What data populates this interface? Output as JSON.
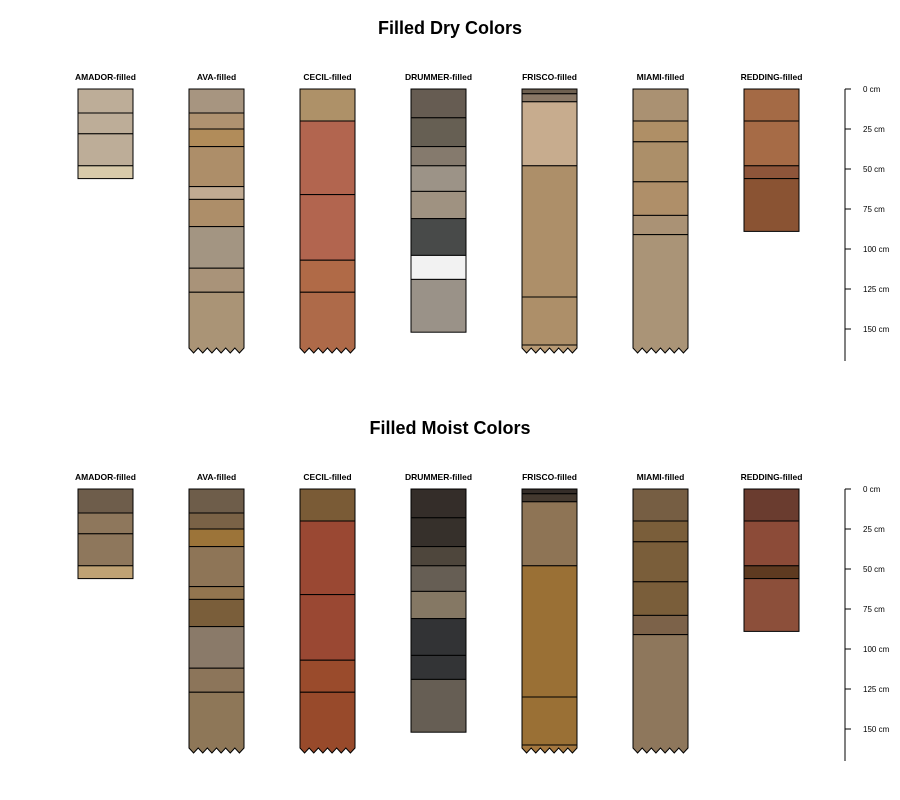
{
  "panels": [
    {
      "title": "Filled Dry Colors",
      "profiles": [
        {
          "label": "AMADOR-filled",
          "truncated": false,
          "horizons": [
            {
              "top": 0,
              "bottom": 15,
              "color": "#BDAD98"
            },
            {
              "top": 15,
              "bottom": 28,
              "color": "#BDAD98"
            },
            {
              "top": 28,
              "bottom": 48,
              "color": "#BDAD98"
            },
            {
              "top": 48,
              "bottom": 56,
              "color": "#D8CAAA"
            }
          ]
        },
        {
          "label": "AVA-filled",
          "truncated": true,
          "horizons": [
            {
              "top": 0,
              "bottom": 15,
              "color": "#A79580"
            },
            {
              "top": 15,
              "bottom": 25,
              "color": "#AF9270"
            },
            {
              "top": 25,
              "bottom": 36,
              "color": "#B18C5A"
            },
            {
              "top": 36,
              "bottom": 61,
              "color": "#AD8E69"
            },
            {
              "top": 61,
              "bottom": 69,
              "color": "#C0AA92"
            },
            {
              "top": 69,
              "bottom": 86,
              "color": "#AD8E69"
            },
            {
              "top": 86,
              "bottom": 112,
              "color": "#A39582"
            },
            {
              "top": 112,
              "bottom": 127,
              "color": "#A99379"
            },
            {
              "top": 127,
              "bottom": 165,
              "color": "#AA9476"
            }
          ]
        },
        {
          "label": "CECIL-filled",
          "truncated": true,
          "horizons": [
            {
              "top": 0,
              "bottom": 20,
              "color": "#AE9168"
            },
            {
              "top": 20,
              "bottom": 66,
              "color": "#B2654F"
            },
            {
              "top": 66,
              "bottom": 107,
              "color": "#B2654F"
            },
            {
              "top": 107,
              "bottom": 127,
              "color": "#B06A47"
            },
            {
              "top": 127,
              "bottom": 165,
              "color": "#AE6A49"
            }
          ]
        },
        {
          "label": "DRUMMER-filled",
          "truncated": false,
          "horizons": [
            {
              "top": 0,
              "bottom": 18,
              "color": "#665C52"
            },
            {
              "top": 18,
              "bottom": 36,
              "color": "#665F53"
            },
            {
              "top": 36,
              "bottom": 48,
              "color": "#857A6D"
            },
            {
              "top": 48,
              "bottom": 64,
              "color": "#9C9387"
            },
            {
              "top": 64,
              "bottom": 81,
              "color": "#9F9281"
            },
            {
              "top": 81,
              "bottom": 104,
              "color": "#484A49"
            },
            {
              "top": 104,
              "bottom": 119,
              "color": "#F2F2F2"
            },
            {
              "top": 119,
              "bottom": 152,
              "color": "#9A9288"
            }
          ]
        },
        {
          "label": "FRISCO-filled",
          "truncated": true,
          "horizons": [
            {
              "top": 0,
              "bottom": 3,
              "color": "#6E6050"
            },
            {
              "top": 3,
              "bottom": 8,
              "color": "#8A7866"
            },
            {
              "top": 8,
              "bottom": 48,
              "color": "#C7AC8E"
            },
            {
              "top": 48,
              "bottom": 130,
              "color": "#AD8F69"
            },
            {
              "top": 130,
              "bottom": 160,
              "color": "#AD8F69"
            },
            {
              "top": 160,
              "bottom": 165,
              "color": "#B89A74"
            }
          ]
        },
        {
          "label": "MIAMI-filled",
          "truncated": true,
          "horizons": [
            {
              "top": 0,
              "bottom": 20,
              "color": "#AA9172"
            },
            {
              "top": 20,
              "bottom": 33,
              "color": "#AF8F66"
            },
            {
              "top": 33,
              "bottom": 58,
              "color": "#AC8F69"
            },
            {
              "top": 58,
              "bottom": 79,
              "color": "#AF8F69"
            },
            {
              "top": 79,
              "bottom": 91,
              "color": "#AA9275"
            },
            {
              "top": 91,
              "bottom": 165,
              "color": "#AA9477"
            }
          ]
        },
        {
          "label": "REDDING-filled",
          "truncated": false,
          "horizons": [
            {
              "top": 0,
              "bottom": 20,
              "color": "#A46A45"
            },
            {
              "top": 20,
              "bottom": 48,
              "color": "#A66B46"
            },
            {
              "top": 48,
              "bottom": 56,
              "color": "#8E553A"
            },
            {
              "top": 56,
              "bottom": 89,
              "color": "#8A5333"
            }
          ]
        }
      ],
      "scale": {
        "ticks": [
          {
            "depth": 0,
            "label": "0 cm"
          },
          {
            "depth": 25,
            "label": "25 cm"
          },
          {
            "depth": 50,
            "label": "50 cm"
          },
          {
            "depth": 75,
            "label": "75 cm"
          },
          {
            "depth": 100,
            "label": "100 cm"
          },
          {
            "depth": 125,
            "label": "125 cm"
          },
          {
            "depth": 150,
            "label": "150 cm"
          }
        ],
        "max_depth": 170
      }
    },
    {
      "title": "Filled Moist Colors",
      "profiles": [
        {
          "label": "AMADOR-filled",
          "truncated": false,
          "horizons": [
            {
              "top": 0,
              "bottom": 15,
              "color": "#6E5D4B"
            },
            {
              "top": 15,
              "bottom": 28,
              "color": "#8E775C"
            },
            {
              "top": 28,
              "bottom": 48,
              "color": "#8E775C"
            },
            {
              "top": 48,
              "bottom": 56,
              "color": "#BFA274"
            }
          ]
        },
        {
          "label": "AVA-filled",
          "truncated": true,
          "horizons": [
            {
              "top": 0,
              "bottom": 15,
              "color": "#6E5D4A"
            },
            {
              "top": 15,
              "bottom": 25,
              "color": "#7A6246"
            },
            {
              "top": 25,
              "bottom": 36,
              "color": "#9C7439"
            },
            {
              "top": 36,
              "bottom": 61,
              "color": "#8E7557"
            },
            {
              "top": 61,
              "bottom": 69,
              "color": "#92754F"
            },
            {
              "top": 69,
              "bottom": 86,
              "color": "#7A5E3A"
            },
            {
              "top": 86,
              "bottom": 112,
              "color": "#8A7A69"
            },
            {
              "top": 112,
              "bottom": 127,
              "color": "#8C755A"
            },
            {
              "top": 127,
              "bottom": 165,
              "color": "#8E7758"
            }
          ]
        },
        {
          "label": "CECIL-filled",
          "truncated": true,
          "horizons": [
            {
              "top": 0,
              "bottom": 20,
              "color": "#7A5B36"
            },
            {
              "top": 20,
              "bottom": 66,
              "color": "#9A4833"
            },
            {
              "top": 66,
              "bottom": 107,
              "color": "#9A4833"
            },
            {
              "top": 107,
              "bottom": 127,
              "color": "#9A4B2C"
            },
            {
              "top": 127,
              "bottom": 165,
              "color": "#984A2B"
            }
          ]
        },
        {
          "label": "DRUMMER-filled",
          "truncated": false,
          "horizons": [
            {
              "top": 0,
              "bottom": 18,
              "color": "#342D29"
            },
            {
              "top": 18,
              "bottom": 36,
              "color": "#36302B"
            },
            {
              "top": 36,
              "bottom": 48,
              "color": "#4E463C"
            },
            {
              "top": 48,
              "bottom": 64,
              "color": "#665E54"
            },
            {
              "top": 64,
              "bottom": 81,
              "color": "#857864"
            },
            {
              "top": 81,
              "bottom": 104,
              "color": "#323335"
            },
            {
              "top": 104,
              "bottom": 119,
              "color": "#333436"
            },
            {
              "top": 119,
              "bottom": 152,
              "color": "#665E54"
            }
          ]
        },
        {
          "label": "FRISCO-filled",
          "truncated": true,
          "horizons": [
            {
              "top": 0,
              "bottom": 3,
              "color": "#352D28"
            },
            {
              "top": 3,
              "bottom": 8,
              "color": "#44392F"
            },
            {
              "top": 8,
              "bottom": 48,
              "color": "#8E7455"
            },
            {
              "top": 48,
              "bottom": 130,
              "color": "#9A7035"
            },
            {
              "top": 130,
              "bottom": 160,
              "color": "#9A7035"
            },
            {
              "top": 160,
              "bottom": 165,
              "color": "#A4773F"
            }
          ]
        },
        {
          "label": "MIAMI-filled",
          "truncated": true,
          "horizons": [
            {
              "top": 0,
              "bottom": 20,
              "color": "#765E43"
            },
            {
              "top": 20,
              "bottom": 33,
              "color": "#7A5E3A"
            },
            {
              "top": 33,
              "bottom": 58,
              "color": "#7A5E3A"
            },
            {
              "top": 58,
              "bottom": 79,
              "color": "#7A5E3A"
            },
            {
              "top": 79,
              "bottom": 91,
              "color": "#7C6249"
            },
            {
              "top": 91,
              "bottom": 165,
              "color": "#8E775C"
            }
          ]
        },
        {
          "label": "REDDING-filled",
          "truncated": false,
          "horizons": [
            {
              "top": 0,
              "bottom": 20,
              "color": "#6A3C2F"
            },
            {
              "top": 20,
              "bottom": 48,
              "color": "#8C4B38"
            },
            {
              "top": 48,
              "bottom": 56,
              "color": "#5E3A20"
            },
            {
              "top": 56,
              "bottom": 89,
              "color": "#8C4F3A"
            }
          ]
        }
      ],
      "scale": {
        "ticks": [
          {
            "depth": 0,
            "label": "0 cm"
          },
          {
            "depth": 25,
            "label": "25 cm"
          },
          {
            "depth": 50,
            "label": "50 cm"
          },
          {
            "depth": 75,
            "label": "75 cm"
          },
          {
            "depth": 100,
            "label": "100 cm"
          },
          {
            "depth": 125,
            "label": "125 cm"
          },
          {
            "depth": 150,
            "label": "150 cm"
          }
        ],
        "max_depth": 170
      }
    }
  ]
}
